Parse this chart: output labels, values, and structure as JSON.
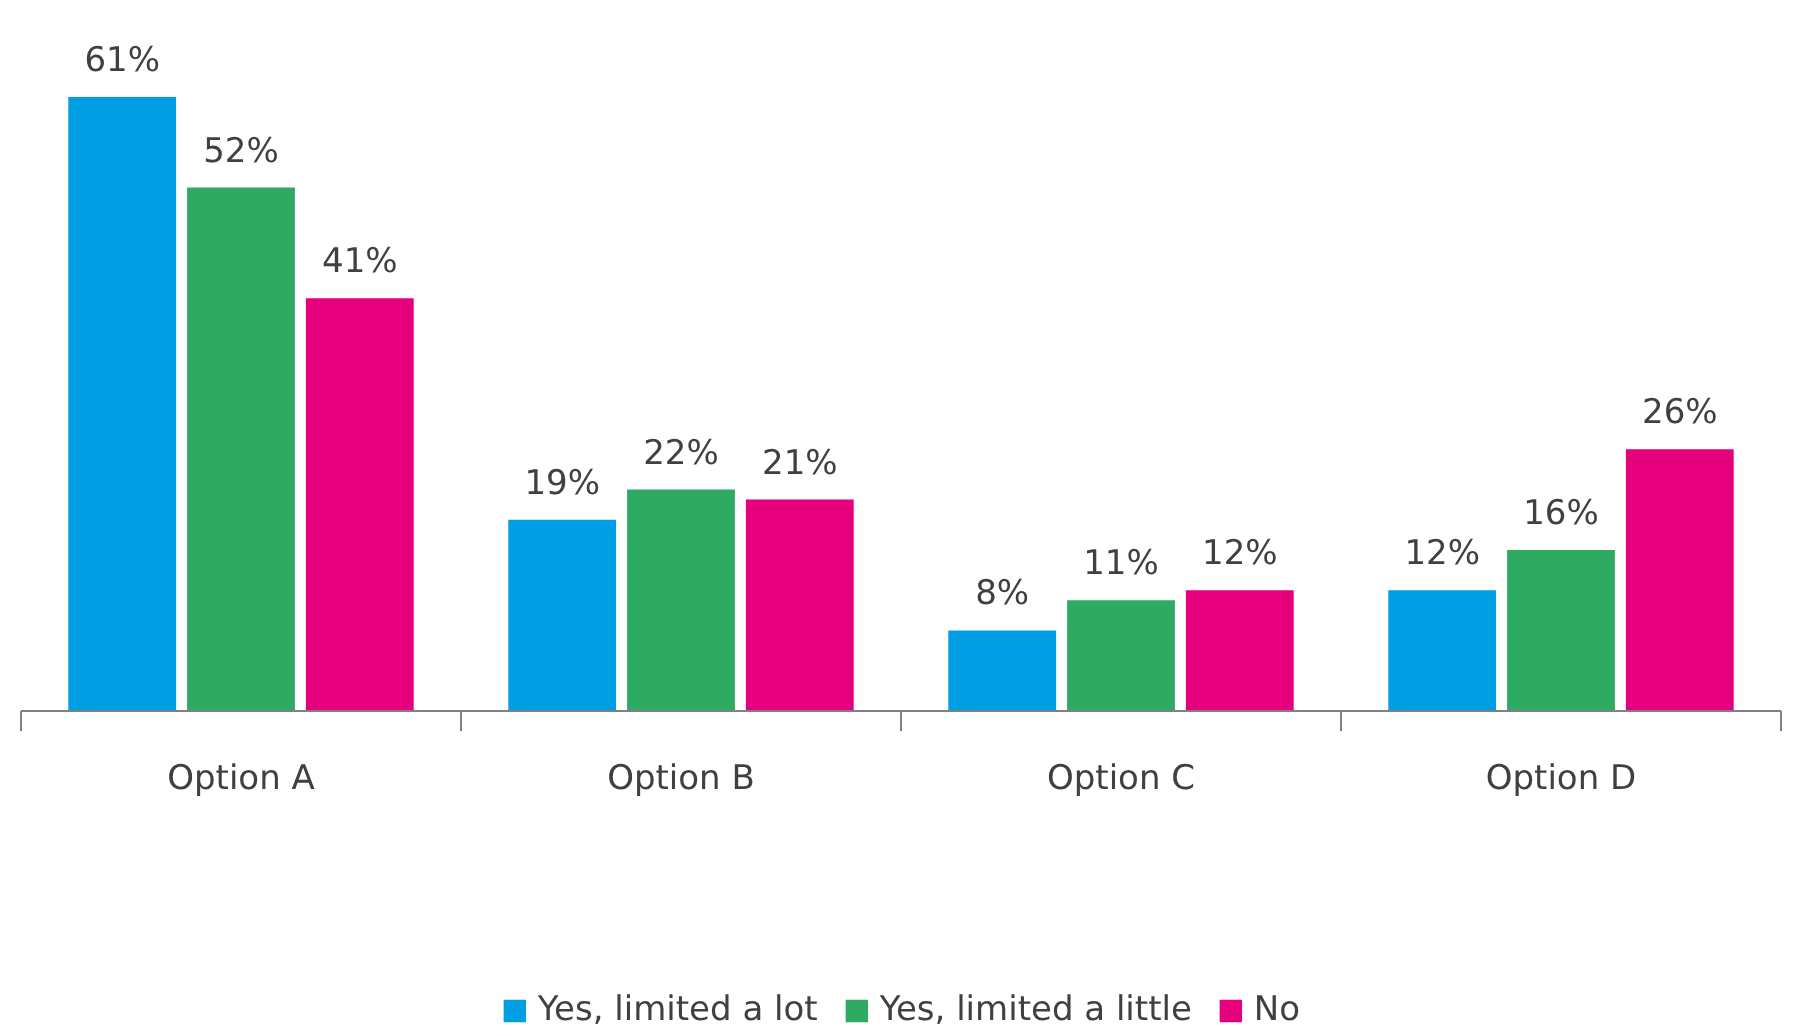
{
  "chart_data": {
    "type": "bar",
    "categories": [
      "Option A",
      "Option B",
      "Option C",
      "Option D"
    ],
    "series": [
      {
        "name": "Yes, limited a lot",
        "color": "#009fe3",
        "values": [
          61,
          19,
          8,
          12
        ],
        "value_labels": [
          "61%",
          "19%",
          "8%",
          "12%"
        ]
      },
      {
        "name": "Yes, limited a little",
        "color": "#2eaa62",
        "values": [
          52,
          22,
          11,
          16
        ],
        "value_labels": [
          "52%",
          "22%",
          "11%",
          "16%"
        ]
      },
      {
        "name": "No",
        "color": "#e6007e",
        "values": [
          41,
          21,
          12,
          26
        ],
        "value_labels": [
          "41%",
          "21%",
          "12%",
          "26%"
        ]
      }
    ],
    "legend": "bottom"
  }
}
